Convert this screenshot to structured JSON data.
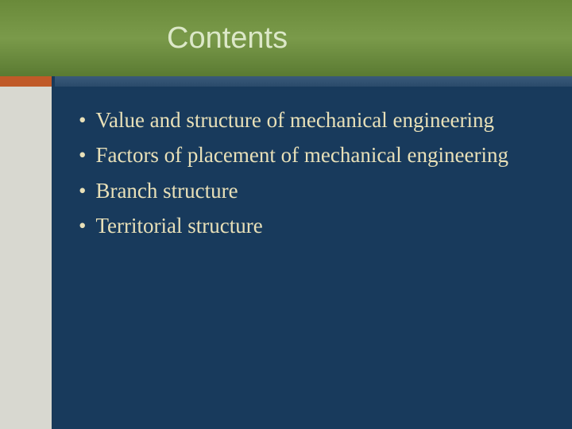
{
  "slide": {
    "title": "Contents",
    "title_color": "#dce8c8",
    "title_fontsize": 38,
    "header_gradient": [
      "#6a8a3a",
      "#7a9a4a",
      "#5a7a32"
    ],
    "divider_accent_color": "#c05a28",
    "divider_right_gradient": [
      "#3a5a7a",
      "#2a4a6a"
    ],
    "sidebar_color": "#d8d8d0",
    "main_background": "#183a5c",
    "bullet_color": "#e8e0b8",
    "bullet_fontsize": 27,
    "bullets": [
      "Value and structure of mechanical engineering",
      "Factors of placement of mechanical engineering",
      "Branch structure",
      "Territorial structure"
    ]
  }
}
